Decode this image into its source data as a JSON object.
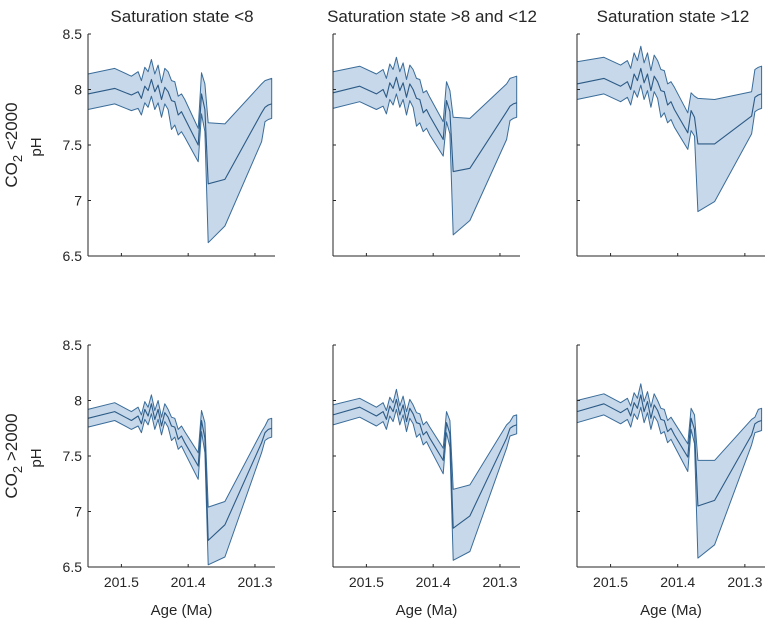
{
  "figure": {
    "band_fill": "#c6d8ea",
    "band_stroke": "#3a6c99",
    "line_color": "#2c5a85",
    "column_titles": [
      "Saturation state <8",
      "Saturation state >8 and <12",
      "Saturation state >12"
    ],
    "row_labels": [
      {
        "prefix": "CO",
        "sub": "2",
        "suffix": " <2000"
      },
      {
        "prefix": "CO",
        "sub": "2",
        "suffix": " >2000"
      }
    ]
  },
  "chart_data": [
    {
      "type": "area",
      "row": 0,
      "col": 0,
      "ylabel": "pH",
      "xlabel": "",
      "xlim": [
        201.55,
        201.27
      ],
      "ylim": [
        6.5,
        8.5
      ],
      "xticks": [
        "201.5",
        "201.4",
        "201.3"
      ],
      "yticks": [
        "6.5",
        "7",
        "7.5",
        "8",
        "8.5"
      ],
      "x": [
        201.55,
        201.51,
        201.485,
        201.475,
        201.47,
        201.465,
        201.46,
        201.455,
        201.45,
        201.445,
        201.44,
        201.435,
        201.43,
        201.425,
        201.42,
        201.415,
        201.41,
        201.405,
        201.385,
        201.38,
        201.375,
        201.37,
        201.345,
        201.29,
        201.285,
        201.28,
        201.275
      ],
      "upper": [
        8.14,
        8.19,
        8.12,
        8.16,
        8.08,
        8.2,
        8.16,
        8.27,
        8.14,
        8.22,
        8.06,
        8.19,
        8.16,
        8.08,
        8.07,
        7.94,
        7.96,
        7.91,
        7.65,
        8.15,
        8.05,
        7.7,
        7.69,
        8.05,
        8.08,
        8.09,
        8.1
      ],
      "median": [
        7.96,
        8.01,
        7.95,
        7.98,
        7.92,
        8.03,
        7.99,
        8.09,
        7.98,
        8.04,
        7.91,
        8.02,
        7.98,
        7.9,
        7.89,
        7.77,
        7.8,
        7.74,
        7.5,
        7.96,
        7.82,
        7.15,
        7.19,
        7.79,
        7.84,
        7.86,
        7.87
      ],
      "lower": [
        7.82,
        7.87,
        7.81,
        7.83,
        7.77,
        7.88,
        7.84,
        7.94,
        7.82,
        7.88,
        7.75,
        7.87,
        7.82,
        7.64,
        7.68,
        7.59,
        7.62,
        7.57,
        7.35,
        7.78,
        7.62,
        6.62,
        6.77,
        7.53,
        7.71,
        7.73,
        7.74
      ]
    },
    {
      "type": "area",
      "row": 0,
      "col": 1,
      "ylabel": "",
      "xlabel": "",
      "xlim": [
        201.55,
        201.27
      ],
      "ylim": [
        6.5,
        8.5
      ],
      "xticks": [
        "201.5",
        "201.4",
        "201.3"
      ],
      "yticks": [
        "6.5",
        "7",
        "7.5",
        "8",
        "8.5"
      ],
      "x": [
        201.55,
        201.51,
        201.485,
        201.475,
        201.47,
        201.465,
        201.46,
        201.455,
        201.45,
        201.445,
        201.44,
        201.435,
        201.43,
        201.425,
        201.42,
        201.415,
        201.41,
        201.405,
        201.385,
        201.38,
        201.375,
        201.37,
        201.345,
        201.29,
        201.285,
        201.28,
        201.275
      ],
      "upper": [
        8.16,
        8.21,
        8.14,
        8.18,
        8.1,
        8.23,
        8.18,
        8.29,
        8.16,
        8.24,
        8.09,
        8.22,
        8.18,
        8.1,
        8.09,
        7.97,
        7.99,
        7.93,
        7.71,
        8.07,
        7.99,
        7.75,
        7.74,
        8.05,
        8.1,
        8.11,
        8.12
      ],
      "median": [
        7.97,
        8.03,
        7.96,
        8.0,
        7.93,
        8.06,
        8.01,
        8.11,
        7.99,
        8.06,
        7.93,
        8.05,
        8.0,
        7.92,
        7.91,
        7.79,
        7.82,
        7.76,
        7.55,
        7.9,
        7.8,
        7.26,
        7.29,
        7.8,
        7.85,
        7.87,
        7.88
      ],
      "lower": [
        7.83,
        7.89,
        7.82,
        7.85,
        7.78,
        7.91,
        7.86,
        7.96,
        7.84,
        7.91,
        7.77,
        7.9,
        7.84,
        7.67,
        7.7,
        7.62,
        7.65,
        7.59,
        7.4,
        7.71,
        7.6,
        6.69,
        6.82,
        7.55,
        7.72,
        7.74,
        7.75
      ]
    },
    {
      "type": "area",
      "row": 0,
      "col": 2,
      "ylabel": "",
      "xlabel": "",
      "xlim": [
        201.55,
        201.27
      ],
      "ylim": [
        6.5,
        8.5
      ],
      "xticks": [
        "201.5",
        "201.4",
        "201.3"
      ],
      "yticks": [
        "6.5",
        "7",
        "7.5",
        "8",
        "8.5"
      ],
      "x": [
        201.55,
        201.51,
        201.485,
        201.475,
        201.47,
        201.465,
        201.46,
        201.455,
        201.45,
        201.445,
        201.44,
        201.435,
        201.43,
        201.425,
        201.42,
        201.415,
        201.41,
        201.405,
        201.385,
        201.38,
        201.375,
        201.37,
        201.345,
        201.29,
        201.285,
        201.28,
        201.275
      ],
      "upper": [
        8.25,
        8.29,
        8.22,
        8.26,
        8.19,
        8.33,
        8.26,
        8.39,
        8.24,
        8.33,
        8.17,
        8.31,
        8.26,
        8.18,
        8.17,
        8.05,
        8.07,
        8.02,
        7.79,
        7.97,
        7.94,
        7.92,
        7.91,
        7.98,
        8.18,
        8.2,
        8.21
      ],
      "median": [
        8.05,
        8.1,
        8.03,
        8.07,
        8.0,
        8.14,
        8.08,
        8.19,
        8.06,
        8.14,
        7.99,
        8.12,
        8.07,
        7.99,
        7.98,
        7.86,
        7.89,
        7.82,
        7.61,
        7.81,
        7.75,
        7.51,
        7.51,
        7.76,
        7.93,
        7.95,
        7.96
      ],
      "lower": [
        7.91,
        7.96,
        7.89,
        7.93,
        7.86,
        7.99,
        7.93,
        8.04,
        7.91,
        7.99,
        7.84,
        7.98,
        7.92,
        7.75,
        7.79,
        7.7,
        7.73,
        7.66,
        7.46,
        7.63,
        7.58,
        6.9,
        6.99,
        7.6,
        7.8,
        7.82,
        7.83
      ]
    },
    {
      "type": "area",
      "row": 1,
      "col": 0,
      "ylabel": "pH",
      "xlabel": "Age (Ma)",
      "xlim": [
        201.55,
        201.27
      ],
      "ylim": [
        6.5,
        8.5
      ],
      "xticks": [
        "201.5",
        "201.4",
        "201.3"
      ],
      "yticks": [
        "6.5",
        "7",
        "7.5",
        "8",
        "8.5"
      ],
      "x": [
        201.55,
        201.51,
        201.485,
        201.475,
        201.47,
        201.465,
        201.46,
        201.455,
        201.45,
        201.445,
        201.44,
        201.435,
        201.43,
        201.425,
        201.42,
        201.415,
        201.41,
        201.405,
        201.385,
        201.38,
        201.375,
        201.37,
        201.345,
        201.29,
        201.285,
        201.28,
        201.275
      ],
      "upper": [
        7.92,
        7.98,
        7.9,
        7.94,
        7.87,
        7.99,
        7.94,
        8.05,
        7.91,
        8.0,
        7.85,
        7.97,
        7.92,
        7.85,
        7.84,
        7.74,
        7.77,
        7.72,
        7.53,
        7.91,
        7.8,
        7.04,
        7.09,
        7.72,
        7.77,
        7.83,
        7.84
      ],
      "median": [
        7.84,
        7.9,
        7.82,
        7.86,
        7.79,
        7.92,
        7.86,
        7.97,
        7.83,
        7.92,
        7.77,
        7.89,
        7.85,
        7.77,
        7.76,
        7.65,
        7.68,
        7.62,
        7.41,
        7.82,
        7.66,
        6.74,
        6.88,
        7.62,
        7.71,
        7.74,
        7.75
      ],
      "lower": [
        7.76,
        7.82,
        7.74,
        7.77,
        7.71,
        7.83,
        7.78,
        7.88,
        7.74,
        7.83,
        7.69,
        7.81,
        7.76,
        7.64,
        7.67,
        7.56,
        7.59,
        7.53,
        7.29,
        7.72,
        7.53,
        6.52,
        6.59,
        7.53,
        7.64,
        7.66,
        7.67
      ]
    },
    {
      "type": "area",
      "row": 1,
      "col": 1,
      "ylabel": "",
      "xlabel": "Age (Ma)",
      "xlim": [
        201.55,
        201.27
      ],
      "ylim": [
        6.5,
        8.5
      ],
      "xticks": [
        "201.5",
        "201.4",
        "201.3"
      ],
      "yticks": [
        "6.5",
        "7",
        "7.5",
        "8",
        "8.5"
      ],
      "x": [
        201.55,
        201.51,
        201.485,
        201.475,
        201.47,
        201.465,
        201.46,
        201.455,
        201.45,
        201.445,
        201.44,
        201.435,
        201.43,
        201.425,
        201.42,
        201.415,
        201.41,
        201.405,
        201.385,
        201.38,
        201.375,
        201.37,
        201.345,
        201.29,
        201.285,
        201.28,
        201.275
      ],
      "upper": [
        7.96,
        8.02,
        7.94,
        7.98,
        7.91,
        8.03,
        7.98,
        8.1,
        7.95,
        8.04,
        7.9,
        8.01,
        7.96,
        7.89,
        7.88,
        7.78,
        7.81,
        7.76,
        7.57,
        7.9,
        7.82,
        7.2,
        7.24,
        7.78,
        7.81,
        7.86,
        7.87
      ],
      "median": [
        7.87,
        7.94,
        7.86,
        7.9,
        7.83,
        7.95,
        7.9,
        8.01,
        7.87,
        7.96,
        7.81,
        7.93,
        7.88,
        7.8,
        7.79,
        7.69,
        7.72,
        7.66,
        7.46,
        7.8,
        7.7,
        6.85,
        6.96,
        7.66,
        7.75,
        7.77,
        7.78
      ],
      "lower": [
        7.78,
        7.85,
        7.77,
        7.81,
        7.74,
        7.86,
        7.81,
        7.92,
        7.78,
        7.87,
        7.72,
        7.84,
        7.79,
        7.67,
        7.7,
        7.6,
        7.63,
        7.57,
        7.34,
        7.71,
        7.58,
        6.56,
        6.64,
        7.57,
        7.68,
        7.69,
        7.7
      ]
    },
    {
      "type": "area",
      "row": 1,
      "col": 2,
      "ylabel": "",
      "xlabel": "Age (Ma)",
      "xlim": [
        201.55,
        201.27
      ],
      "ylim": [
        6.5,
        8.5
      ],
      "xticks": [
        "201.5",
        "201.4",
        "201.3"
      ],
      "yticks": [
        "6.5",
        "7",
        "7.5",
        "8",
        "8.5"
      ],
      "x": [
        201.55,
        201.51,
        201.485,
        201.475,
        201.47,
        201.465,
        201.46,
        201.455,
        201.45,
        201.445,
        201.44,
        201.435,
        201.43,
        201.425,
        201.42,
        201.415,
        201.41,
        201.405,
        201.385,
        201.38,
        201.375,
        201.37,
        201.345,
        201.29,
        201.285,
        201.28,
        201.275
      ],
      "upper": [
        8.0,
        8.06,
        7.98,
        8.02,
        7.95,
        8.07,
        8.02,
        8.15,
        7.99,
        8.08,
        7.94,
        8.06,
        8.0,
        7.93,
        7.92,
        7.82,
        7.85,
        7.8,
        7.61,
        7.93,
        7.87,
        7.46,
        7.46,
        7.83,
        7.85,
        7.92,
        7.93
      ],
      "median": [
        7.9,
        7.97,
        7.89,
        7.93,
        7.86,
        7.98,
        7.93,
        8.05,
        7.9,
        7.99,
        7.84,
        7.96,
        7.91,
        7.83,
        7.82,
        7.72,
        7.75,
        7.69,
        7.49,
        7.84,
        7.74,
        7.05,
        7.1,
        7.69,
        7.79,
        7.81,
        7.82
      ],
      "lower": [
        7.8,
        7.87,
        7.79,
        7.83,
        7.76,
        7.88,
        7.83,
        7.94,
        7.8,
        7.89,
        7.74,
        7.86,
        7.81,
        7.7,
        7.72,
        7.62,
        7.65,
        7.59,
        7.36,
        7.74,
        7.61,
        6.58,
        6.7,
        7.6,
        7.71,
        7.72,
        7.73
      ]
    }
  ]
}
